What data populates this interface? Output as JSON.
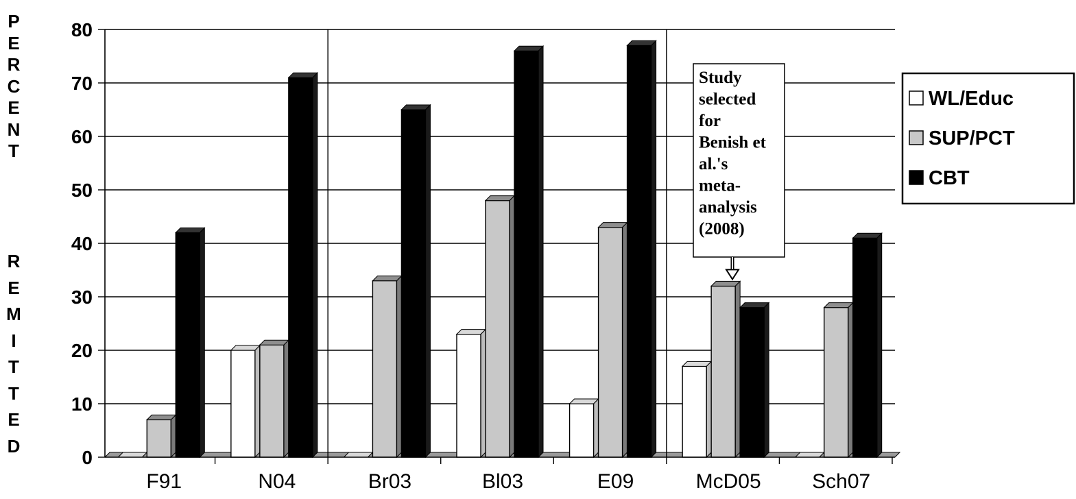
{
  "chart_data": {
    "type": "bar",
    "ylabel": "PERCENT REMITTED",
    "ylabel_words": [
      "PERCENT",
      "REMITTED"
    ],
    "ylim": [
      0,
      80
    ],
    "yticks": [
      "0",
      "10",
      "20",
      "30",
      "40",
      "50",
      "60",
      "70",
      "80"
    ],
    "grid": true,
    "legend_position": "right",
    "categories": [
      "F91",
      "N04",
      "Br03",
      "Bl03",
      "E09",
      "McD05",
      "Sch07"
    ],
    "series": [
      {
        "name": "WL/Educ",
        "color": "#ffffff",
        "values": [
          0,
          20,
          0,
          23,
          10,
          17,
          0
        ]
      },
      {
        "name": "SUP/PCT",
        "color": "#c8c8c8",
        "values": [
          7,
          21,
          33,
          48,
          43,
          32,
          28
        ]
      },
      {
        "name": "CBT",
        "color": "#000000",
        "values": [
          42,
          71,
          65,
          76,
          77,
          28,
          41
        ]
      }
    ],
    "annotation": {
      "lines": [
        "Study",
        "selected",
        "for",
        "Benish et",
        "al.'s",
        "meta-",
        "analysis",
        "(2008)"
      ],
      "target_category": "McD05"
    }
  }
}
